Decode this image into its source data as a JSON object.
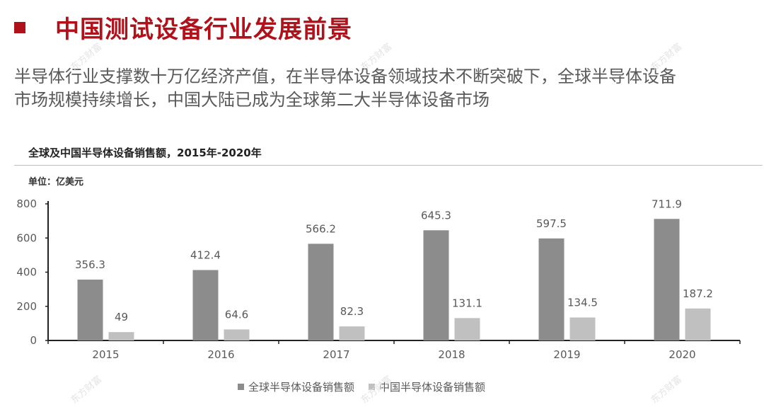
{
  "header": {
    "title": "中国测试设备行业发展前景",
    "subtitle_line1": "半导体行业支撑数十万亿经济产值，在半导体设备领域技术不断突破下，全球半导体设备",
    "subtitle_line2": "市场规模持续增长，中国大陆已成为全球第二大半导体设备市场",
    "accent_color": "#b0121b"
  },
  "watermark": {
    "text": "东方财富"
  },
  "chart_data": {
    "type": "bar",
    "title": "全球及中国半导体设备销售额，2015年-2020年",
    "unit_label": "单位：亿美元",
    "categories": [
      "2015",
      "2016",
      "2017",
      "2018",
      "2019",
      "2020"
    ],
    "series": [
      {
        "name": "全球半导体设备销售额",
        "values": [
          356.3,
          412.4,
          566.2,
          645.3,
          597.5,
          711.9
        ],
        "color": "#8c8c8c"
      },
      {
        "name": "中国半导体设备销售额",
        "values": [
          49,
          64.6,
          82.3,
          131.1,
          134.5,
          187.2
        ],
        "color": "#c0c0c0"
      }
    ],
    "ylim": [
      0,
      800
    ],
    "yticks": [
      0,
      200,
      400,
      600,
      800
    ],
    "grid": false,
    "legend_position": "bottom"
  }
}
